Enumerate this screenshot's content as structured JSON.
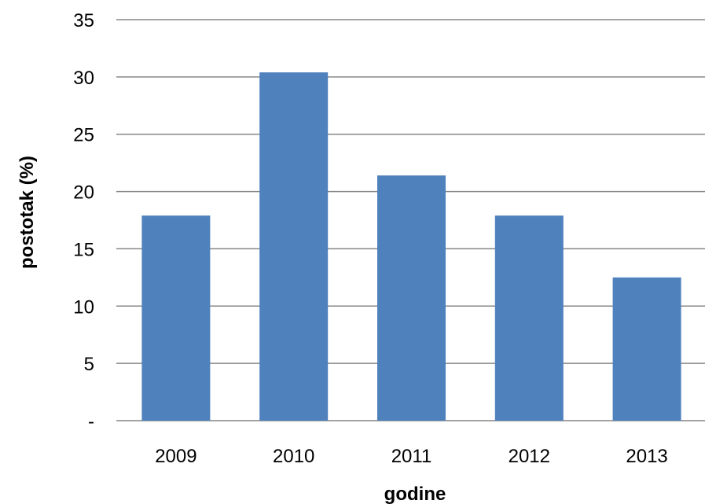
{
  "chart_data": {
    "type": "bar",
    "categories": [
      "2009",
      "2010",
      "2011",
      "2012",
      "2013"
    ],
    "values": [
      17.9,
      30.4,
      21.4,
      17.9,
      12.5
    ],
    "title": "",
    "xlabel": "godine",
    "ylabel": "postotak (%)",
    "ylim": [
      0,
      35
    ],
    "yticks": [
      0,
      5,
      10,
      15,
      20,
      25,
      30,
      35
    ],
    "ytick_labels": [
      "-",
      "5",
      "10",
      "15",
      "20",
      "25",
      "30",
      "35"
    ],
    "grid": "horizontal",
    "legend": "none",
    "colors": {
      "bar": "#4F81BD",
      "gridline": "#868686",
      "text": "#000000"
    }
  }
}
